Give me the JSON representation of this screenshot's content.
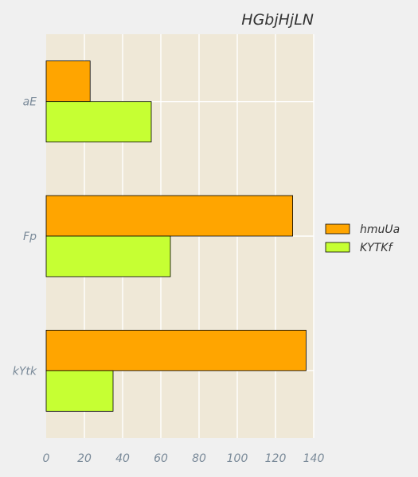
{
  "chart_data": {
    "type": "bar",
    "orientation": "horizontal",
    "title": "HGbjHjLN",
    "xlabel": "",
    "ylabel": "",
    "categories": [
      "aE",
      "Fp",
      "kYtk"
    ],
    "series": [
      {
        "name": "hmuUa",
        "color": "#ffa500",
        "values": [
          23,
          129,
          136
        ]
      },
      {
        "name": "KYTKf",
        "color": "#c6ff33",
        "values": [
          55,
          65,
          35
        ]
      }
    ],
    "xlim": [
      0,
      140
    ],
    "xticks": [
      0,
      20,
      40,
      60,
      80,
      100,
      120,
      140
    ],
    "grid": true,
    "legend_position": "right"
  },
  "colors": {
    "figure_background": "#f0f0f0",
    "plot_background": "#efe8d7",
    "grid": "#ffffff"
  }
}
